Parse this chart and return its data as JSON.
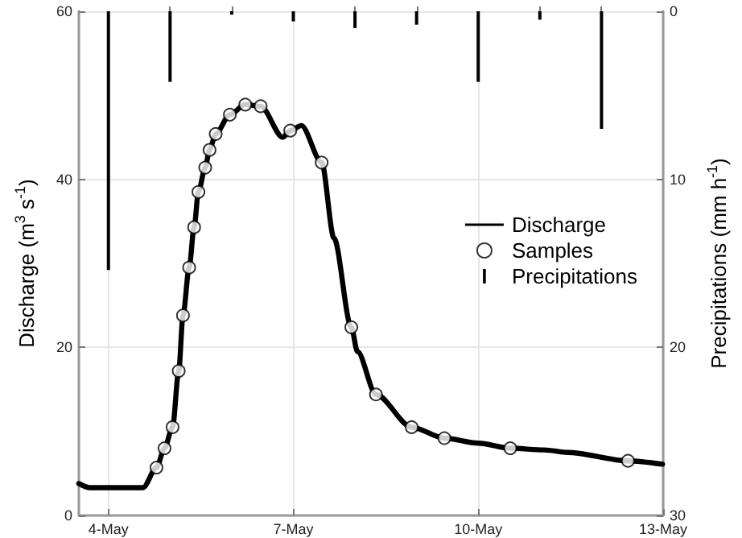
{
  "chart_data": {
    "type": "line",
    "ylabel": "Discharge (m$^{3}$ s$^{-1}$)",
    "y2label": "Precipitations (mm h$^{-1}$)",
    "xlim": [
      "--05-03T12:29",
      "--05-13"
    ],
    "xticks": [
      {
        "value": "--05-04",
        "label": "4-May"
      },
      {
        "value": "--05-05",
        "label": null
      },
      {
        "value": "--05-06",
        "label": null
      },
      {
        "value": "--05-07",
        "label": "7-May"
      },
      {
        "value": "--05-08",
        "label": null
      },
      {
        "value": "--05-09",
        "label": null
      },
      {
        "value": "--05-10",
        "label": "10-May"
      },
      {
        "value": "--05-11",
        "label": null
      },
      {
        "value": "--05-12",
        "label": null
      },
      {
        "value": "--05-13",
        "label": "13-May"
      }
    ],
    "ylim": [
      0,
      60
    ],
    "yticks": [
      0,
      20,
      40,
      60
    ],
    "y2lim": [
      30,
      0
    ],
    "y2ticks": [
      0,
      10,
      20,
      30
    ],
    "grid": true,
    "legend": "right",
    "series": [
      {
        "name": "Discharge",
        "type": "line",
        "color": "#000000",
        "marker": "none",
        "x": [
          "--05-03T12:29",
          "--05-03T16:48",
          "--05-04T13:26",
          "--05-04T18:43",
          "--05-04T21:50",
          "--05-05T00:58",
          "--05-05T03:22",
          "--05-05T05:02",
          "--05-05T07:26",
          "--05-05T09:22",
          "--05-05T11:02",
          "--05-05T13:41",
          "--05-05T15:22",
          "--05-05T17:46",
          "--05-05T23:17",
          "--05-06T05:17",
          "--05-06T11:17",
          "--05-06T19:55",
          "--05-06T22:48",
          "--05-07T03:07",
          "--05-07T11:02",
          "--05-07T15:50",
          "--05-07T22:34",
          "--05-08T00:58",
          "--05-08T08:10",
          "--05-08T22:05",
          "--05-09T10:48",
          "--05-10T00:00",
          "--05-10T12:29",
          "--05-11T01:41",
          "--05-11T10:48",
          "--05-12T10:19",
          "--05-12T23:46"
        ],
        "values": [
          3.8,
          3.3,
          3.3,
          5.7,
          8.0,
          10.5,
          17.2,
          23.8,
          29.5,
          34.3,
          38.5,
          41.4,
          43.5,
          45.4,
          47.7,
          48.9,
          48.7,
          45.0,
          45.8,
          46.4,
          42.0,
          33.0,
          22.4,
          19.5,
          14.4,
          10.5,
          9.2,
          8.6,
          8.0,
          7.8,
          7.5,
          6.5,
          6.1
        ]
      },
      {
        "name": "Samples",
        "type": "scatter",
        "color": "#000000",
        "marker": "circle",
        "x": [
          "--05-04T18:43",
          "--05-04T21:50",
          "--05-05T00:58",
          "--05-05T03:22",
          "--05-05T05:02",
          "--05-05T07:26",
          "--05-05T09:22",
          "--05-05T11:02",
          "--05-05T13:41",
          "--05-05T15:22",
          "--05-05T17:46",
          "--05-05T23:17",
          "--05-06T05:17",
          "--05-06T11:17",
          "--05-06T22:48",
          "--05-07T11:02",
          "--05-07T22:34",
          "--05-08T08:10",
          "--05-08T22:05",
          "--05-09T10:48",
          "--05-10T12:29",
          "--05-12T10:19"
        ],
        "values": [
          5.7,
          8.0,
          10.5,
          17.2,
          23.8,
          29.5,
          34.3,
          38.5,
          41.4,
          43.5,
          45.4,
          47.7,
          48.9,
          48.7,
          45.8,
          42.0,
          22.4,
          14.4,
          10.5,
          9.2,
          8.0,
          6.5
        ]
      },
      {
        "name": "Precipitations",
        "type": "bar",
        "axis": "y2",
        "color": "#000000",
        "x": [
          "--05-04",
          "--05-05",
          "--05-06",
          "--05-07",
          "--05-08",
          "--05-09",
          "--05-10",
          "--05-11",
          "--05-12"
        ],
        "values": [
          15.4,
          4.2,
          0.2,
          0.6,
          1.0,
          0.8,
          4.2,
          0.5,
          7.0
        ]
      }
    ]
  }
}
